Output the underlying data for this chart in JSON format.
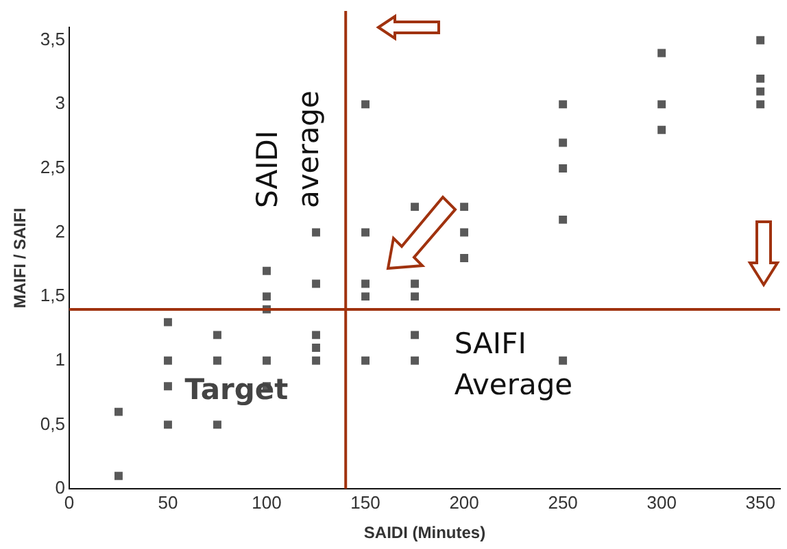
{
  "chart_data": {
    "type": "scatter",
    "xlabel": "SAIDI (Minutes)",
    "ylabel": "MAIFI / SAIFI",
    "x": [
      25,
      25,
      50,
      50,
      50,
      50,
      75,
      75,
      75,
      100,
      100,
      100,
      100,
      100,
      125,
      125,
      125,
      125,
      125,
      150,
      150,
      150,
      150,
      150,
      175,
      175,
      175,
      175,
      175,
      200,
      200,
      200,
      250,
      250,
      250,
      250,
      250,
      300,
      300,
      300,
      350,
      350,
      350,
      350
    ],
    "values": [
      0.6,
      0.1,
      1.3,
      1.0,
      0.8,
      0.5,
      1.2,
      1.0,
      0.5,
      1.7,
      1.5,
      1.4,
      1.0,
      0.8,
      2.0,
      1.6,
      1.2,
      1.1,
      1.0,
      3.0,
      2.0,
      1.6,
      1.5,
      1.0,
      2.2,
      1.6,
      1.5,
      1.2,
      1.0,
      2.2,
      2.0,
      1.8,
      3.0,
      2.7,
      2.5,
      2.1,
      1.0,
      3.4,
      3.0,
      2.8,
      3.5,
      3.2,
      3.1,
      3.0
    ],
    "color": "#595959",
    "marker": "square",
    "xlim": [
      0,
      360
    ],
    "xticks": [
      0,
      50,
      100,
      150,
      200,
      250,
      300,
      350
    ],
    "ylim": [
      0,
      3.6
    ],
    "yticks": [
      0,
      {
        "value": 0.5,
        "label": "0,5"
      },
      1,
      {
        "value": 1.5,
        "label": "1,5"
      },
      2,
      {
        "value": 2.5,
        "label": "2,5"
      },
      3,
      {
        "value": 3.5,
        "label": "3,5"
      }
    ],
    "grid": false,
    "legend": false,
    "ref_lines": [
      {
        "axis": "x",
        "value": 140,
        "label": "SAIDI average",
        "color": "#a0320e"
      },
      {
        "axis": "y",
        "value": 1.4,
        "label": "SAIFI Average",
        "color": "#a0320e"
      }
    ],
    "annotations": [
      "Target"
    ]
  }
}
